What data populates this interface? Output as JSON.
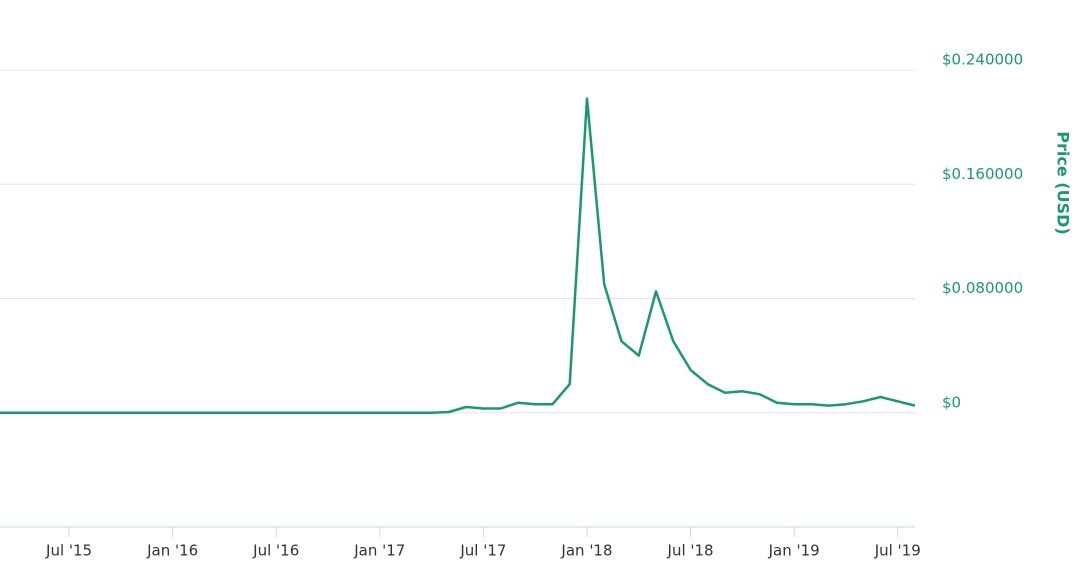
{
  "chart_data": {
    "type": "line",
    "y_label": "Price (USD)",
    "x": [
      "2015-03",
      "2015-04",
      "2015-05",
      "2015-06",
      "2015-07",
      "2015-08",
      "2015-09",
      "2015-10",
      "2015-11",
      "2015-12",
      "2016-01",
      "2016-02",
      "2016-03",
      "2016-04",
      "2016-05",
      "2016-06",
      "2016-07",
      "2016-08",
      "2016-09",
      "2016-10",
      "2016-11",
      "2016-12",
      "2017-01",
      "2017-02",
      "2017-03",
      "2017-04",
      "2017-05",
      "2017-06",
      "2017-07",
      "2017-08",
      "2017-09",
      "2017-10",
      "2017-11",
      "2017-12",
      "2018-01",
      "2018-02",
      "2018-03",
      "2018-04",
      "2018-05",
      "2018-06",
      "2018-07",
      "2018-08",
      "2018-09",
      "2018-10",
      "2018-11",
      "2018-12",
      "2019-01",
      "2019-02",
      "2019-03",
      "2019-04",
      "2019-05",
      "2019-06",
      "2019-07",
      "2019-08"
    ],
    "series": [
      {
        "name": "Price",
        "color": "#1a9a6c",
        "values": [
          0,
          0,
          0,
          0,
          0,
          0,
          0,
          0,
          0,
          0,
          0,
          0,
          0,
          0,
          0,
          0,
          0,
          0,
          0,
          0,
          0,
          0,
          0,
          0,
          0,
          0,
          0.0005,
          0.004,
          0.003,
          0.003,
          0.007,
          0.006,
          0.006,
          0.02,
          0.22,
          0.09,
          0.05,
          0.04,
          0.085,
          0.05,
          0.03,
          0.02,
          0.014,
          0.015,
          0.013,
          0.007,
          0.006,
          0.006,
          0.005,
          0.006,
          0.008,
          0.011,
          0.008,
          0.005
        ]
      }
    ],
    "xlim": [
      "2015-03",
      "2019-08"
    ],
    "xticks": [
      {
        "value": "2015-07",
        "label": "Jul '15"
      },
      {
        "value": "2016-01",
        "label": "Jan '16"
      },
      {
        "value": "2016-07",
        "label": "Jul '16"
      },
      {
        "value": "2017-01",
        "label": "Jan '17"
      },
      {
        "value": "2017-07",
        "label": "Jul '17"
      },
      {
        "value": "2018-01",
        "label": "Jan '18"
      },
      {
        "value": "2018-07",
        "label": "Jul '18"
      },
      {
        "value": "2019-01",
        "label": "Jan '19"
      },
      {
        "value": "2019-07",
        "label": "Jul '19"
      }
    ],
    "ylim": [
      -0.08,
      0.24
    ],
    "yticks": [
      {
        "value": 0,
        "label": "$0"
      },
      {
        "value": 0.08,
        "label": "$0.080000"
      },
      {
        "value": 0.16,
        "label": "$0.160000"
      },
      {
        "value": 0.24,
        "label": "$0.240000"
      }
    ],
    "grid": true
  }
}
